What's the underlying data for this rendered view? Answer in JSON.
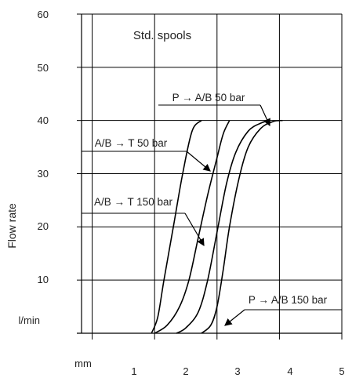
{
  "chart_data": {
    "type": "line",
    "title": "Std. spools",
    "xlabel": "mm",
    "ylabel": "Flow rate",
    "y_unit": "l/min",
    "xlim": [
      0,
      5
    ],
    "ylim": [
      0,
      60
    ],
    "x_ticks": [
      "1",
      "2",
      "3",
      "4",
      "5"
    ],
    "y_ticks": [
      "10",
      "20",
      "30",
      "40",
      "50",
      "60"
    ],
    "grid": true,
    "legend": "none",
    "series": [
      {
        "name": "A/B → T 50 bar",
        "x": [
          1.95,
          2.05,
          2.15,
          2.3,
          2.45,
          2.6,
          2.75
        ],
        "y": [
          0,
          3,
          10,
          20,
          30,
          38,
          40
        ]
      },
      {
        "name": "A/B → T 150 bar",
        "x": [
          2.0,
          2.2,
          2.4,
          2.55,
          2.7,
          2.85,
          3.0,
          3.1,
          3.2
        ],
        "y": [
          0,
          1.5,
          5,
          10,
          18,
          26,
          33,
          37.5,
          40
        ]
      },
      {
        "name": "P → A/B 50 bar",
        "x": [
          2.35,
          2.5,
          2.7,
          2.85,
          3.0,
          3.15,
          3.3,
          3.5,
          3.7,
          3.85
        ],
        "y": [
          0,
          1,
          4,
          10,
          19,
          28,
          34,
          38,
          39.5,
          40
        ]
      },
      {
        "name": "P → A/B 150 bar",
        "x": [
          2.75,
          2.9,
          3.0,
          3.1,
          3.2,
          3.35,
          3.5,
          3.7,
          3.9,
          4.05
        ],
        "y": [
          0,
          1.5,
          5,
          12,
          20,
          29,
          35,
          38.5,
          39.8,
          40
        ]
      }
    ],
    "annotations": [
      {
        "text": "P → A/B 50 bar",
        "series": 2
      },
      {
        "text": "A/B → T 50 bar",
        "series": 0
      },
      {
        "text": "A/B → T 150 bar",
        "series": 1
      },
      {
        "text": "P → A/B 150 bar",
        "series": 3
      }
    ]
  }
}
